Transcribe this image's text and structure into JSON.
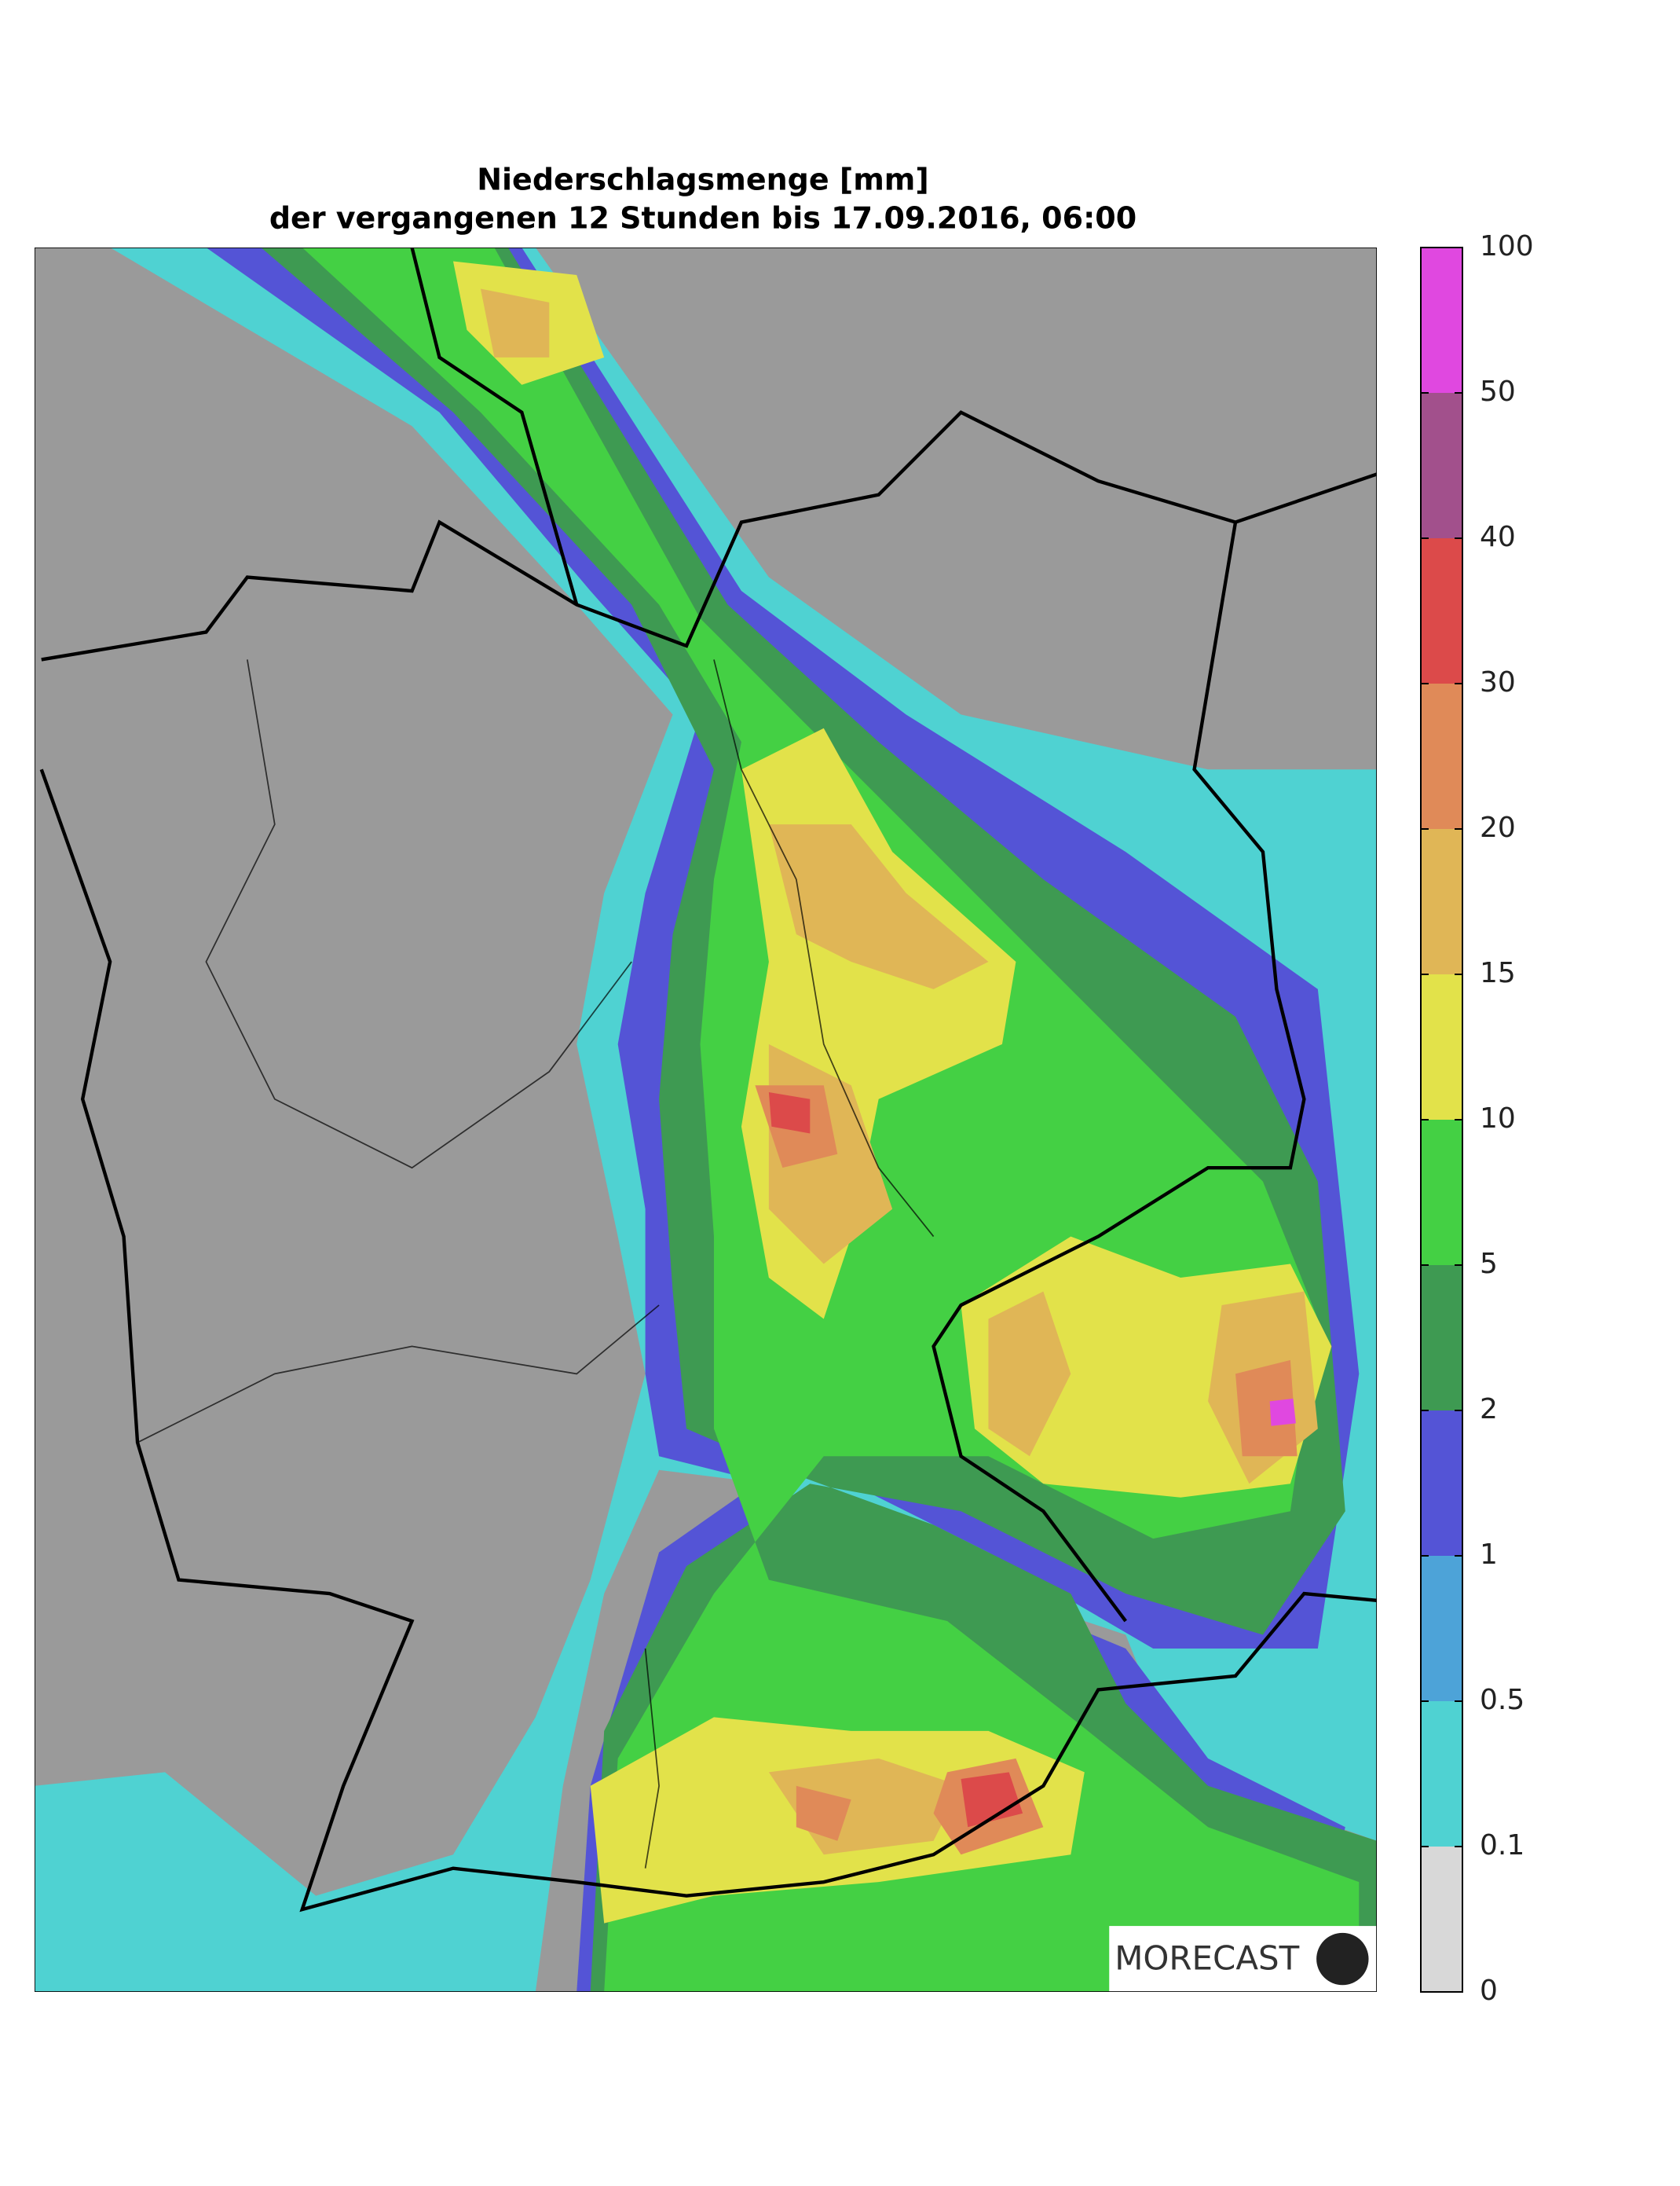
{
  "map": {
    "title": [
      "Niederschlagsmenge [mm]",
      "der vergangenen 12 Stunden bis 17.09.2016, 06:00"
    ],
    "logo": "MORECAST",
    "colorbar": {
      "ticks": [
        0,
        0.1,
        0.5,
        1,
        2,
        5,
        10,
        15,
        20,
        30,
        40,
        50,
        100
      ],
      "colors": [
        "#d8d8d8",
        "#4fd2d2",
        "#4da3d8",
        "#5454d6",
        "#3e9a52",
        "#44d044",
        "#e2e24a",
        "#e0b656",
        "#e08a58",
        "#dc4a4a",
        "#a2508c",
        "#e048e0"
      ]
    }
  }
}
